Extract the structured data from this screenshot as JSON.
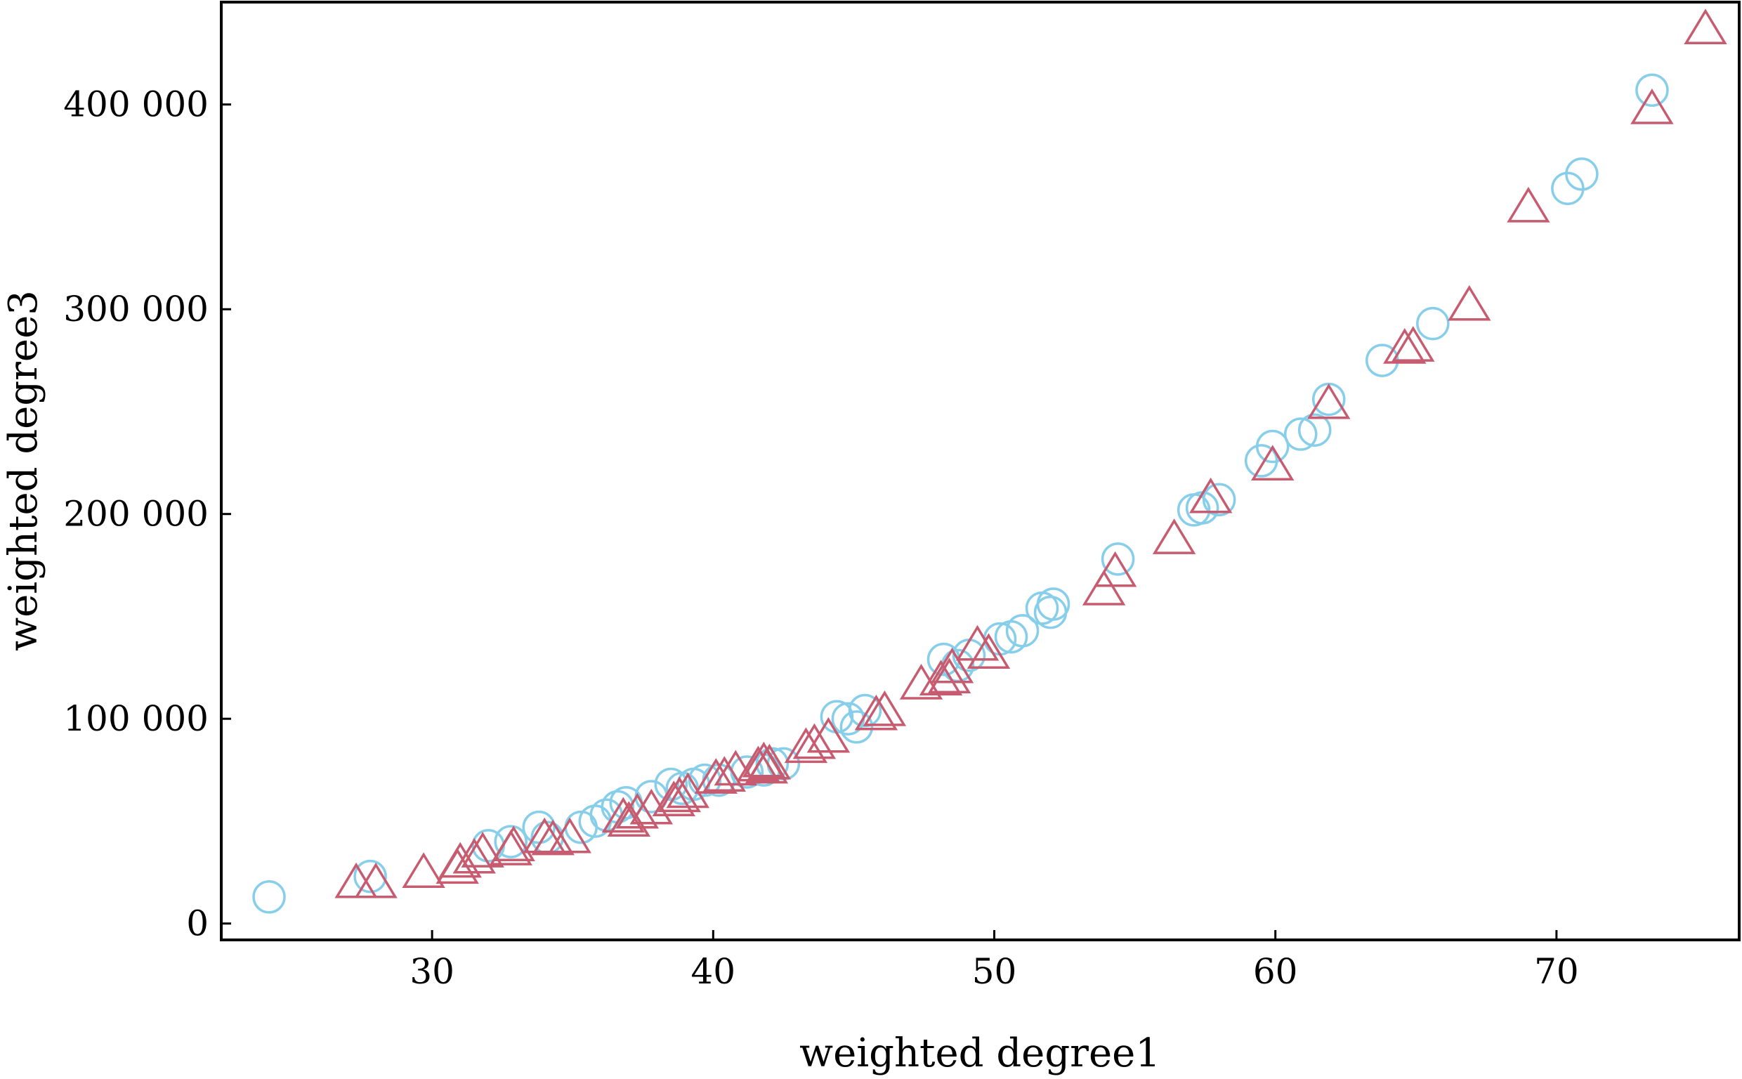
{
  "chart_data": {
    "type": "scatter",
    "title": "",
    "xlabel": "weighted degree1",
    "ylabel": "weighted degree3",
    "xlim": [
      22.5,
      76.5
    ],
    "ylim": [
      -8000,
      450000
    ],
    "x_ticks": [
      30,
      40,
      50,
      60,
      70
    ],
    "y_ticks": [
      0,
      100000,
      200000,
      300000,
      400000
    ],
    "x_tick_labels": [
      "30",
      "40",
      "50",
      "60",
      "70"
    ],
    "y_tick_labels": [
      "0",
      "100 000",
      "200 000",
      "300 000",
      "400 000"
    ],
    "grid": false,
    "legend": "none",
    "series": [
      {
        "marker": "circle",
        "color": "#87CEEB",
        "points": [
          [
            24.2,
            13000
          ],
          [
            27.8,
            23000
          ],
          [
            32.0,
            38000
          ],
          [
            32.8,
            40000
          ],
          [
            33.8,
            47000
          ],
          [
            34.1,
            42000
          ],
          [
            35.3,
            47000
          ],
          [
            35.8,
            50000
          ],
          [
            36.2,
            53000
          ],
          [
            36.6,
            57000
          ],
          [
            36.9,
            59000
          ],
          [
            37.8,
            62000
          ],
          [
            38.5,
            68000
          ],
          [
            38.9,
            66000
          ],
          [
            39.3,
            68000
          ],
          [
            39.7,
            70000
          ],
          [
            40.2,
            70000
          ],
          [
            41.2,
            74000
          ],
          [
            41.8,
            75000
          ],
          [
            42.1,
            78000
          ],
          [
            42.5,
            78000
          ],
          [
            44.4,
            101000
          ],
          [
            44.8,
            100000
          ],
          [
            45.1,
            96000
          ],
          [
            45.4,
            104000
          ],
          [
            48.2,
            129000
          ],
          [
            48.7,
            126000
          ],
          [
            49.1,
            131000
          ],
          [
            50.2,
            139000
          ],
          [
            50.6,
            140000
          ],
          [
            51.0,
            143000
          ],
          [
            51.7,
            154000
          ],
          [
            52.0,
            152000
          ],
          [
            52.1,
            156000
          ],
          [
            54.4,
            178000
          ],
          [
            57.1,
            202000
          ],
          [
            57.4,
            203000
          ],
          [
            58.0,
            207000
          ],
          [
            59.5,
            226000
          ],
          [
            59.9,
            233000
          ],
          [
            60.9,
            239000
          ],
          [
            61.4,
            241000
          ],
          [
            61.9,
            256000
          ],
          [
            63.8,
            275000
          ],
          [
            65.6,
            293000
          ],
          [
            70.4,
            359000
          ],
          [
            70.9,
            366000
          ],
          [
            73.4,
            407000
          ]
        ]
      },
      {
        "marker": "triangle",
        "color": "#C75B70",
        "points": [
          [
            27.3,
            20000
          ],
          [
            28.0,
            20000
          ],
          [
            29.7,
            25000
          ],
          [
            30.9,
            27000
          ],
          [
            31.0,
            30000
          ],
          [
            31.5,
            32000
          ],
          [
            31.8,
            35000
          ],
          [
            32.8,
            36000
          ],
          [
            32.9,
            38000
          ],
          [
            34.0,
            42000
          ],
          [
            34.3,
            41000
          ],
          [
            34.9,
            42000
          ],
          [
            36.8,
            52000
          ],
          [
            37.0,
            50000
          ],
          [
            37.3,
            54000
          ],
          [
            37.8,
            56000
          ],
          [
            38.6,
            60000
          ],
          [
            38.8,
            62000
          ],
          [
            39.1,
            64000
          ],
          [
            40.1,
            71000
          ],
          [
            40.4,
            72000
          ],
          [
            40.8,
            75000
          ],
          [
            41.6,
            77000
          ],
          [
            41.8,
            79000
          ],
          [
            41.9,
            76000
          ],
          [
            42.0,
            78000
          ],
          [
            43.3,
            86000
          ],
          [
            43.6,
            88000
          ],
          [
            44.1,
            91000
          ],
          [
            45.8,
            102000
          ],
          [
            46.1,
            104000
          ],
          [
            47.4,
            117000
          ],
          [
            48.1,
            119000
          ],
          [
            48.4,
            120000
          ],
          [
            48.5,
            125000
          ],
          [
            49.4,
            136000
          ],
          [
            49.8,
            132000
          ],
          [
            53.9,
            163000
          ],
          [
            54.3,
            172000
          ],
          [
            56.4,
            188000
          ],
          [
            57.7,
            208000
          ],
          [
            59.9,
            224000
          ],
          [
            61.9,
            254000
          ],
          [
            64.6,
            281000
          ],
          [
            64.9,
            282000
          ],
          [
            66.9,
            302000
          ],
          [
            69.0,
            350000
          ],
          [
            73.4,
            398000
          ],
          [
            75.3,
            437000
          ]
        ]
      }
    ]
  }
}
